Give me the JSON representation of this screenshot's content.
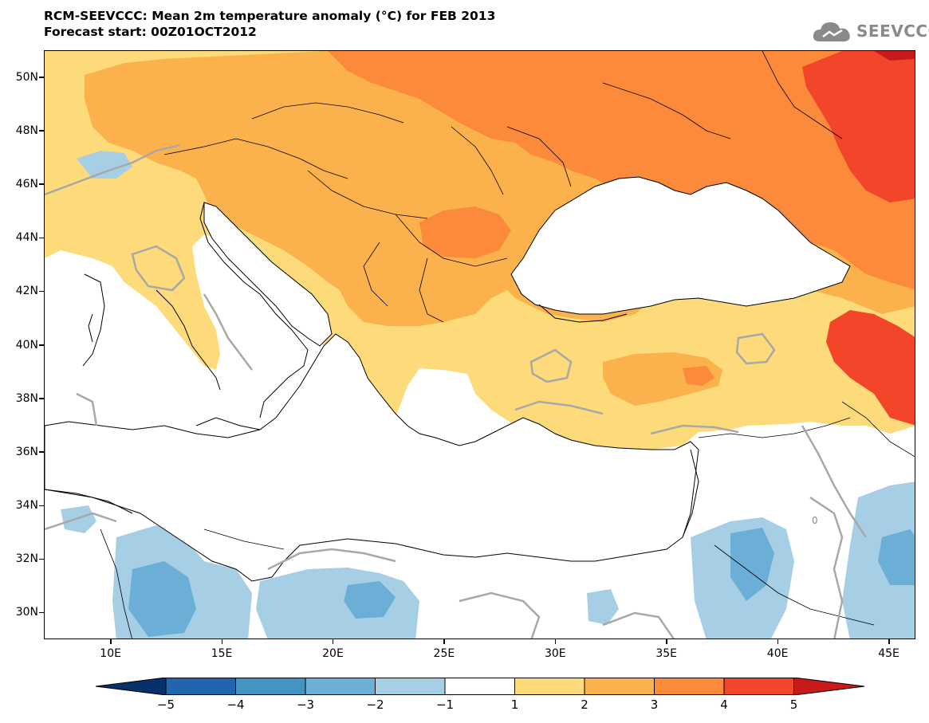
{
  "title": {
    "line1": "RCM-SEEVCCC: Mean 2m temperature anomaly (°C) for FEB 2013",
    "line2": "Forecast start: 00Z01OCT2012"
  },
  "logo": {
    "text": "SEEVCCC",
    "icon": "cloud-icon"
  },
  "map": {
    "lon_range": [
      7,
      46.2
    ],
    "lat_range": [
      29,
      51
    ],
    "lat_labels": [
      "50N",
      "48N",
      "46N",
      "44N",
      "42N",
      "40N",
      "38N",
      "36N",
      "34N",
      "32N",
      "30N"
    ],
    "lon_labels": [
      "10E",
      "15E",
      "20E",
      "25E",
      "30E",
      "35E",
      "40E",
      "45E"
    ],
    "contour_label": "0"
  },
  "colorbar": {
    "levels": [
      "-5",
      "-4",
      "-3",
      "-2",
      "-1",
      "1",
      "2",
      "3",
      "4",
      "5"
    ],
    "colors": [
      "#08306b",
      "#2166ac",
      "#4393c3",
      "#6baed6",
      "#a6cfe6",
      "#ffffff",
      "#fdda7a",
      "#fcb24c",
      "#fb8a3a",
      "#f2452a",
      "#c81a1a"
    ]
  }
}
